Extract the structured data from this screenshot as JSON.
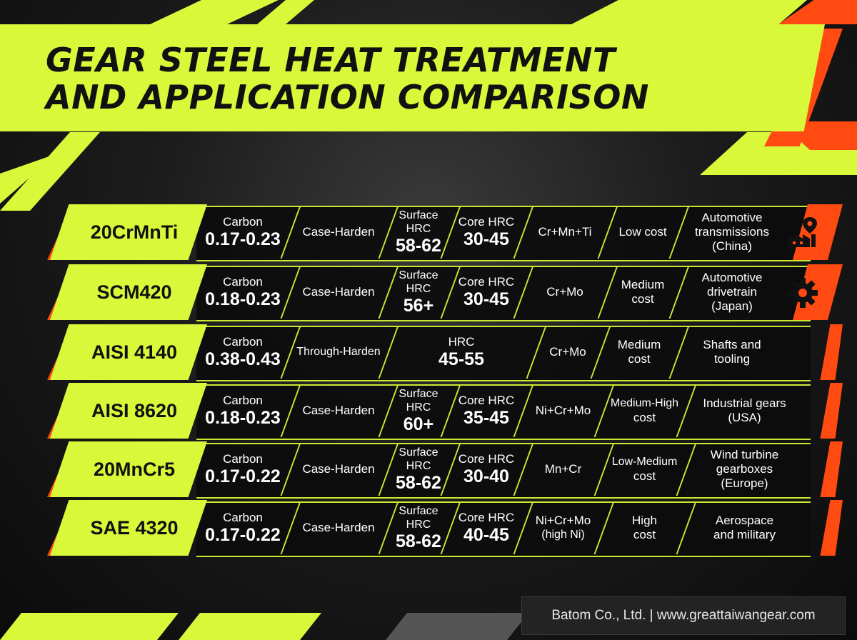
{
  "title": {
    "line1": "GEAR STEEL HEAT TREATMENT",
    "line2": "AND APPLICATION COMPARISON"
  },
  "colors": {
    "accent_lime": "#d9f83a",
    "accent_orange": "#ff4a12",
    "cell_bg": "#0c0c0c"
  },
  "rows": [
    {
      "name": "20CrMnTi",
      "carbon_label": "Carbon",
      "carbon_value": "0.17-0.23",
      "treatment": "Case-Harden",
      "surface_label1": "Surface",
      "surface_label2": "HRC",
      "surface_value": "58-62",
      "core_label": "Core HRC",
      "core_value": "30-45",
      "alloy1": "Cr+Mn+Ti",
      "alloy2": "",
      "cost1": "Low cost",
      "cost2": "",
      "app1": "Automotive",
      "app2": "transmissions",
      "app3": "(China)",
      "icon": "factory-location-icon"
    },
    {
      "name": "SCM420",
      "carbon_label": "Carbon",
      "carbon_value": "0.18-0.23",
      "treatment": "Case-Harden",
      "surface_label1": "Surface",
      "surface_label2": "HRC",
      "surface_value": "56+",
      "core_label": "Core HRC",
      "core_value": "30-45",
      "alloy1": "Cr+Mo",
      "alloy2": "",
      "cost1": "Medium",
      "cost2": "cost",
      "app1": "Automotive",
      "app2": "drivetrain",
      "app3": "(Japan)",
      "icon": "gear-icon"
    },
    {
      "name": "AISI 4140",
      "carbon_label": "Carbon",
      "carbon_value": "0.38-0.43",
      "treatment": "Through-Harden",
      "hrc_label": "HRC",
      "hrc_value": "45-55",
      "alloy1": "Cr+Mo",
      "alloy2": "",
      "cost1": "Medium",
      "cost2": "cost",
      "app1": "Shafts and",
      "app2": "tooling",
      "app3": ""
    },
    {
      "name": "AISI 8620",
      "carbon_label": "Carbon",
      "carbon_value": "0.18-0.23",
      "treatment": "Case-Harden",
      "surface_label1": "Surface",
      "surface_label2": "HRC",
      "surface_value": "60+",
      "core_label": "Core HRC",
      "core_value": "35-45",
      "alloy1": "Ni+Cr+Mo",
      "alloy2": "",
      "cost1": "Medium-High",
      "cost2": "cost",
      "app1": "Industrial gears",
      "app2": "(USA)",
      "app3": ""
    },
    {
      "name": "20MnCr5",
      "carbon_label": "Carbon",
      "carbon_value": "0.17-0.22",
      "treatment": "Case-Harden",
      "surface_label1": "Surface",
      "surface_label2": "HRC",
      "surface_value": "58-62",
      "core_label": "Core HRC",
      "core_value": "30-40",
      "alloy1": "Mn+Cr",
      "alloy2": "",
      "cost1": "Low-Medium",
      "cost2": "cost",
      "app1": "Wind turbine",
      "app2": "gearboxes",
      "app3": "(Europe)"
    },
    {
      "name": "SAE 4320",
      "carbon_label": "Carbon",
      "carbon_value": "0.17-0.22",
      "treatment": "Case-Harden",
      "surface_label1": "Surface",
      "surface_label2": "HRC",
      "surface_value": "58-62",
      "core_label": "Core HRC",
      "core_value": "40-45",
      "alloy1": "Ni+Cr+Mo",
      "alloy2": "(high Ni)",
      "cost1": "High",
      "cost2": "cost",
      "app1": "Aerospace",
      "app2": "and military",
      "app3": ""
    }
  ],
  "footer": {
    "text": "Batom Co., Ltd. | www.greattaiwangear.com"
  }
}
